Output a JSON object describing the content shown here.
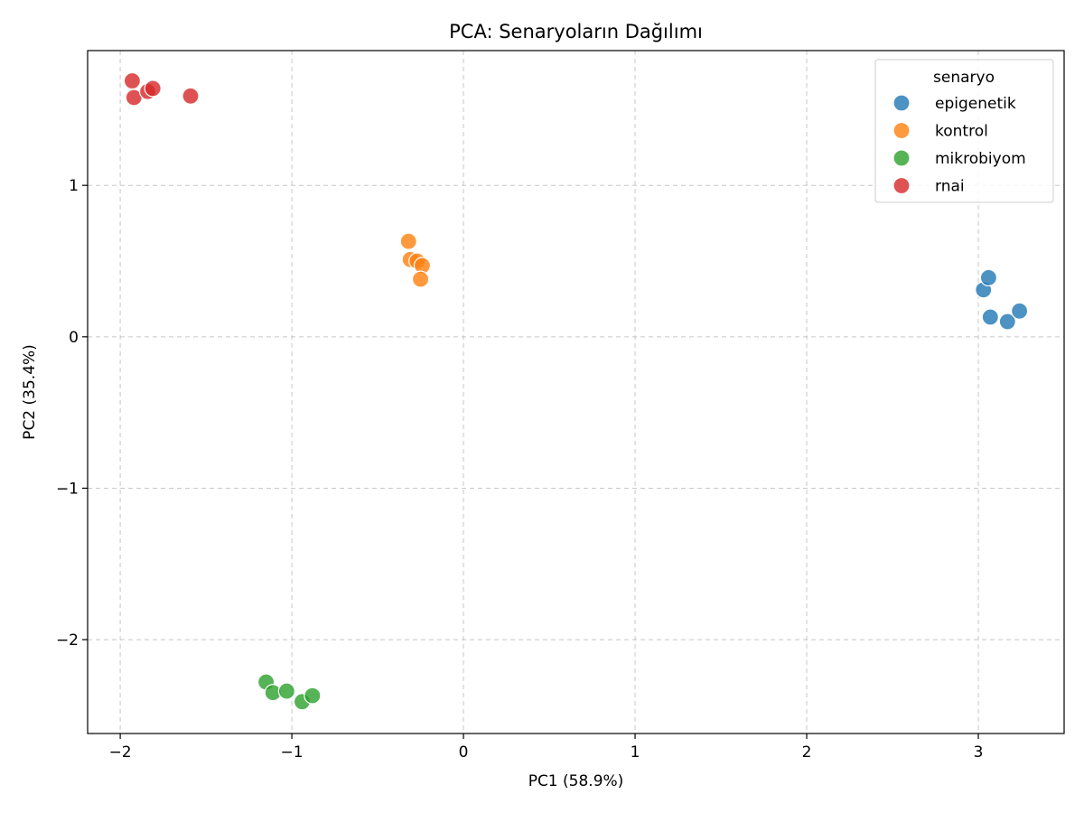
{
  "chart_data": {
    "type": "scatter",
    "title": "PCA: Senaryoların Dağılımı",
    "xlabel": "PC1 (58.9%)",
    "ylabel": "PC2 (35.4%)",
    "xlim": [
      -2.19,
      3.5
    ],
    "ylim": [
      -2.62,
      1.89
    ],
    "xticks": [
      -2,
      -1,
      0,
      1,
      2,
      3
    ],
    "yticks": [
      -2,
      -1,
      0,
      1
    ],
    "xtick_labels": [
      "−2",
      "−1",
      "0",
      "1",
      "2",
      "3"
    ],
    "ytick_labels": [
      "−2",
      "−1",
      "0",
      "1"
    ],
    "grid": true,
    "legend": {
      "title": "senaryo",
      "position": "top-right"
    },
    "series": [
      {
        "name": "epigenetik",
        "color": "#1f77b4",
        "points": [
          [
            3.03,
            0.31
          ],
          [
            3.06,
            0.39
          ],
          [
            3.07,
            0.13
          ],
          [
            3.17,
            0.1
          ],
          [
            3.24,
            0.17
          ]
        ]
      },
      {
        "name": "kontrol",
        "color": "#ff7f0e",
        "points": [
          [
            -0.32,
            0.63
          ],
          [
            -0.31,
            0.51
          ],
          [
            -0.27,
            0.5
          ],
          [
            -0.24,
            0.47
          ],
          [
            -0.25,
            0.38
          ]
        ]
      },
      {
        "name": "mikrobiyom",
        "color": "#2ca02c",
        "points": [
          [
            -1.15,
            -2.28
          ],
          [
            -1.11,
            -2.35
          ],
          [
            -1.03,
            -2.34
          ],
          [
            -0.94,
            -2.41
          ],
          [
            -0.88,
            -2.37
          ]
        ]
      },
      {
        "name": "rnai",
        "color": "#d62728",
        "points": [
          [
            -1.93,
            1.69
          ],
          [
            -1.92,
            1.58
          ],
          [
            -1.84,
            1.62
          ],
          [
            -1.81,
            1.64
          ],
          [
            -1.59,
            1.59
          ]
        ]
      }
    ]
  }
}
